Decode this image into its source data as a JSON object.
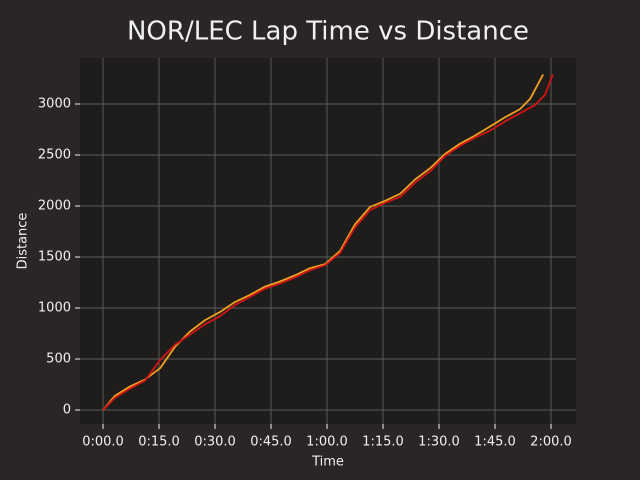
{
  "chart_data": {
    "type": "line",
    "title": "NOR/LEC Lap Time vs Distance",
    "x_label": "Time",
    "y_label": "Distance",
    "series": [
      {
        "color": "#f0a020",
        "x": [
          0,
          3.2,
          7.2,
          11.3,
          15.3,
          19.3,
          23.3,
          27.3,
          31.3,
          35.4,
          39.4,
          43.4,
          47.4,
          51.4,
          55.4,
          59.5,
          63.5,
          67.5,
          71.5,
          75.5,
          79.6,
          83.6,
          87.6,
          91.6,
          95.6,
          99.6,
          103.7,
          107.7,
          111.7,
          114.4,
          117.9
        ],
        "values": [
          0,
          140,
          230,
          300,
          410,
          620,
          770,
          880,
          960,
          1060,
          1130,
          1210,
          1260,
          1320,
          1390,
          1430,
          1560,
          1820,
          1990,
          2050,
          2120,
          2260,
          2370,
          2510,
          2610,
          2690,
          2780,
          2870,
          2950,
          3050,
          3290
        ]
      },
      {
        "color": "#d41414",
        "x": [
          0,
          3.2,
          7.2,
          11.3,
          15.3,
          19.3,
          23.3,
          27.3,
          31.3,
          35.4,
          39.4,
          43.4,
          47.4,
          51.4,
          55.4,
          59.5,
          63.5,
          67.5,
          71.5,
          75.5,
          79.6,
          83.6,
          87.6,
          91.6,
          95.6,
          99.6,
          103.7,
          107.7,
          111.7,
          115.7,
          118.4,
          120.5
        ],
        "values": [
          0,
          120,
          210,
          290,
          490,
          640,
          740,
          840,
          920,
          1030,
          1110,
          1190,
          1240,
          1300,
          1370,
          1420,
          1540,
          1790,
          1960,
          2030,
          2090,
          2230,
          2340,
          2490,
          2590,
          2670,
          2740,
          2830,
          2910,
          2990,
          3090,
          3290
        ]
      }
    ],
    "xlim": [
      -6.16,
      126.7
    ],
    "xticks": [
      {
        "value": 0,
        "label": "0:00.0"
      },
      {
        "value": 15,
        "label": "0:15.0"
      },
      {
        "value": 30,
        "label": "0:30.0"
      },
      {
        "value": 45,
        "label": "0:45.0"
      },
      {
        "value": 60,
        "label": "1:00.0"
      },
      {
        "value": 75,
        "label": "1:15.0"
      },
      {
        "value": 90,
        "label": "1:30.0"
      },
      {
        "value": 105,
        "label": "1:45.0"
      },
      {
        "value": 120,
        "label": "2:00.0"
      }
    ],
    "ylim": [
      -137,
      3451
    ],
    "yticks": [
      0,
      500,
      1000,
      1500,
      2000,
      2500,
      3000
    ],
    "grid": true
  }
}
